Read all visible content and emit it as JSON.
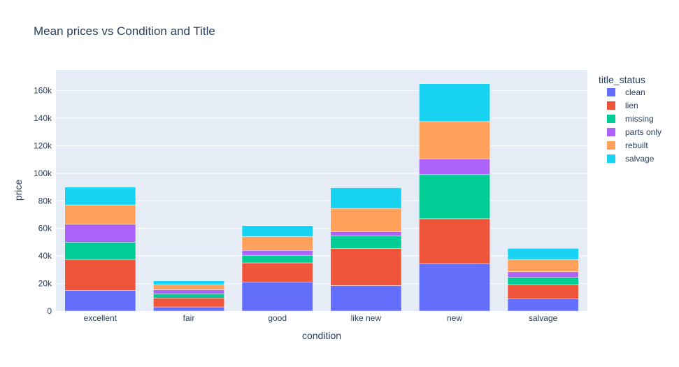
{
  "chart_data": {
    "type": "bar",
    "barmode": "stack",
    "title": "Mean prices vs Condition and Title",
    "xlabel": "condition",
    "ylabel": "price",
    "ylim": [
      0,
      175000
    ],
    "yticks": [
      0,
      20000,
      40000,
      60000,
      80000,
      100000,
      120000,
      140000,
      160000
    ],
    "ytick_labels": [
      "0",
      "20k",
      "40k",
      "60k",
      "80k",
      "100k",
      "120k",
      "140k",
      "160k"
    ],
    "grid": true,
    "legend_title": "title_status",
    "legend_position": "top-right",
    "categories": [
      "excellent",
      "fair",
      "good",
      "like new",
      "new",
      "salvage"
    ],
    "series": [
      {
        "name": "clean",
        "color": "#636efa",
        "values": [
          15000,
          3000,
          21000,
          18500,
          34500,
          9000
        ]
      },
      {
        "name": "lien",
        "color": "#ef553b",
        "values": [
          22500,
          6500,
          14000,
          27000,
          32500,
          10000
        ]
      },
      {
        "name": "missing",
        "color": "#00cc96",
        "values": [
          12500,
          3000,
          5500,
          9000,
          32000,
          5500
        ]
      },
      {
        "name": "parts only",
        "color": "#ab63fa",
        "values": [
          13000,
          3000,
          3500,
          3000,
          11500,
          4000
        ]
      },
      {
        "name": "rebuilt",
        "color": "#ffa15a",
        "values": [
          14000,
          3500,
          10000,
          17000,
          27000,
          9000
        ]
      },
      {
        "name": "salvage",
        "color": "#19d3f3",
        "values": [
          13000,
          3000,
          8000,
          15000,
          27500,
          8000
        ]
      }
    ]
  }
}
